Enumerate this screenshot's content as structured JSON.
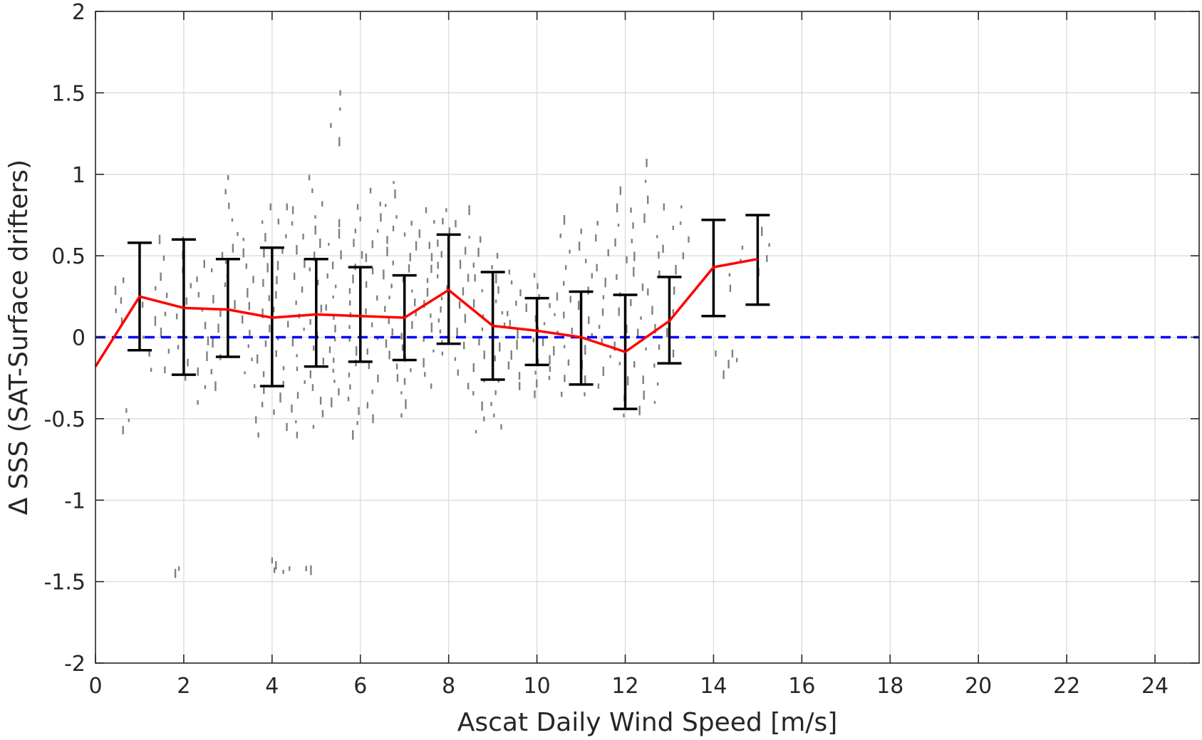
{
  "chart_data": {
    "type": "scatter",
    "title": "",
    "xlabel": "Ascat Daily Wind Speed [m/s]",
    "ylabel": "Δ SSS (SAT-Surface drifters)",
    "xlim": [
      0,
      25
    ],
    "ylim": [
      -2,
      2
    ],
    "grid": true,
    "x_ticks": [
      0,
      2,
      4,
      6,
      8,
      10,
      12,
      14,
      16,
      18,
      20,
      22,
      24
    ],
    "y_ticks": [
      2,
      1.5,
      1,
      0.5,
      0,
      -0.5,
      -1,
      -1.5,
      -2
    ],
    "x_tick_labels": [
      "0",
      "2",
      "4",
      "6",
      "8",
      "10",
      "12",
      "14",
      "16",
      "18",
      "20",
      "22",
      "24"
    ],
    "y_tick_labels": [
      "2",
      "1.5",
      "1",
      "0.5",
      "0",
      "-0.5",
      "-1",
      "-1.5",
      "-2"
    ],
    "colors": {
      "scatter": "#808080",
      "mean_line": "#ff0000",
      "zero_line": "#0000ff",
      "error_bars": "#000000"
    },
    "zero_line": {
      "y": 0,
      "style": "dashed"
    },
    "binned_mean": {
      "x": [
        0,
        1,
        2,
        3,
        4,
        5,
        6,
        7,
        8,
        9,
        10,
        11,
        12,
        13,
        14,
        15
      ],
      "y": [
        -0.18,
        0.25,
        0.18,
        0.17,
        0.12,
        0.14,
        0.13,
        0.12,
        0.29,
        0.07,
        0.04,
        0.0,
        -0.09,
        0.1,
        0.43,
        0.48
      ]
    },
    "error_bars": [
      {
        "x": 1,
        "low": -0.08,
        "high": 0.58
      },
      {
        "x": 2,
        "low": -0.23,
        "high": 0.6
      },
      {
        "x": 3,
        "low": -0.12,
        "high": 0.48
      },
      {
        "x": 4,
        "low": -0.3,
        "high": 0.55
      },
      {
        "x": 5,
        "low": -0.18,
        "high": 0.48
      },
      {
        "x": 6,
        "low": -0.15,
        "high": 0.43
      },
      {
        "x": 7,
        "low": -0.14,
        "high": 0.38
      },
      {
        "x": 8,
        "low": -0.04,
        "high": 0.63
      },
      {
        "x": 9,
        "low": -0.26,
        "high": 0.4
      },
      {
        "x": 10,
        "low": -0.17,
        "high": 0.24
      },
      {
        "x": 11,
        "low": -0.29,
        "high": 0.28
      },
      {
        "x": 12,
        "low": -0.44,
        "high": 0.26
      },
      {
        "x": 13,
        "low": -0.16,
        "high": 0.37
      },
      {
        "x": 14,
        "low": 0.13,
        "high": 0.72
      },
      {
        "x": 15,
        "low": 0.2,
        "high": 0.75
      }
    ],
    "scatter_clusters": [
      {
        "x": 0.6,
        "y_min": 0.1,
        "y_max": 0.35,
        "n": 5
      },
      {
        "x": 0.7,
        "y_min": -0.57,
        "y_max": -0.45,
        "n": 3
      },
      {
        "x": 1.2,
        "y_min": -0.2,
        "y_max": 0.3,
        "n": 6
      },
      {
        "x": 1.6,
        "y_min": -0.2,
        "y_max": 0.6,
        "n": 8
      },
      {
        "x": 1.9,
        "y_min": -1.45,
        "y_max": -1.42,
        "n": 2
      },
      {
        "x": 2.0,
        "y_min": -0.25,
        "y_max": 0.6,
        "n": 10
      },
      {
        "x": 2.4,
        "y_min": -0.4,
        "y_max": 0.45,
        "n": 10
      },
      {
        "x": 2.8,
        "y_min": -0.3,
        "y_max": 0.5,
        "n": 10
      },
      {
        "x": 3.1,
        "y_min": 0.2,
        "y_max": 0.98,
        "n": 10
      },
      {
        "x": 3.5,
        "y_min": -0.3,
        "y_max": 0.6,
        "n": 12
      },
      {
        "x": 3.8,
        "y_min": -0.6,
        "y_max": 0.8,
        "n": 16
      },
      {
        "x": 4.0,
        "y_min": -1.43,
        "y_max": -1.37,
        "n": 3
      },
      {
        "x": 4.2,
        "y_min": -0.55,
        "y_max": 0.8,
        "n": 16
      },
      {
        "x": 4.4,
        "y_min": -1.44,
        "y_max": -1.42,
        "n": 2
      },
      {
        "x": 4.6,
        "y_min": -0.6,
        "y_max": 0.78,
        "n": 18
      },
      {
        "x": 4.85,
        "y_min": -1.43,
        "y_max": -1.42,
        "n": 2
      },
      {
        "x": 5.0,
        "y_min": -0.55,
        "y_max": 0.98,
        "n": 20
      },
      {
        "x": 5.4,
        "y_min": -0.4,
        "y_max": 0.7,
        "n": 18
      },
      {
        "x": 5.5,
        "y_min": 1.2,
        "y_max": 1.5,
        "n": 4
      },
      {
        "x": 5.9,
        "y_min": -0.6,
        "y_max": 0.8,
        "n": 20
      },
      {
        "x": 6.3,
        "y_min": -0.5,
        "y_max": 0.9,
        "n": 18
      },
      {
        "x": 6.7,
        "y_min": -0.25,
        "y_max": 0.95,
        "n": 18
      },
      {
        "x": 7.1,
        "y_min": -0.48,
        "y_max": 0.7,
        "n": 18
      },
      {
        "x": 7.5,
        "y_min": -0.3,
        "y_max": 0.78,
        "n": 16
      },
      {
        "x": 7.9,
        "y_min": -0.1,
        "y_max": 0.78,
        "n": 14
      },
      {
        "x": 8.3,
        "y_min": -0.3,
        "y_max": 0.78,
        "n": 14
      },
      {
        "x": 8.7,
        "y_min": -0.58,
        "y_max": 0.6,
        "n": 16
      },
      {
        "x": 9.1,
        "y_min": -0.55,
        "y_max": 0.5,
        "n": 16
      },
      {
        "x": 9.5,
        "y_min": -0.3,
        "y_max": 0.4,
        "n": 12
      },
      {
        "x": 9.9,
        "y_min": -0.35,
        "y_max": 0.38,
        "n": 12
      },
      {
        "x": 10.3,
        "y_min": -0.25,
        "y_max": 0.25,
        "n": 10
      },
      {
        "x": 10.7,
        "y_min": -0.35,
        "y_max": 0.72,
        "n": 12
      },
      {
        "x": 11.1,
        "y_min": -0.35,
        "y_max": 0.65,
        "n": 12
      },
      {
        "x": 11.5,
        "y_min": -0.3,
        "y_max": 0.7,
        "n": 12
      },
      {
        "x": 11.9,
        "y_min": -0.48,
        "y_max": 0.9,
        "n": 14
      },
      {
        "x": 12.3,
        "y_min": -0.45,
        "y_max": 0.78,
        "n": 14
      },
      {
        "x": 12.6,
        "y_min": -0.4,
        "y_max": 1.07,
        "n": 14
      },
      {
        "x": 13.0,
        "y_min": -0.1,
        "y_max": 0.8,
        "n": 8
      },
      {
        "x": 13.3,
        "y_min": 0.5,
        "y_max": 0.8,
        "n": 4
      },
      {
        "x": 14.2,
        "y_min": -0.23,
        "y_max": -0.1,
        "n": 3
      },
      {
        "x": 14.5,
        "y_min": 0.3,
        "y_max": 0.55,
        "n": 4
      },
      {
        "x": 14.6,
        "y_min": -0.14,
        "y_max": -0.1,
        "n": 2
      },
      {
        "x": 15.1,
        "y_min": 0.4,
        "y_max": 0.65,
        "n": 4
      }
    ]
  }
}
